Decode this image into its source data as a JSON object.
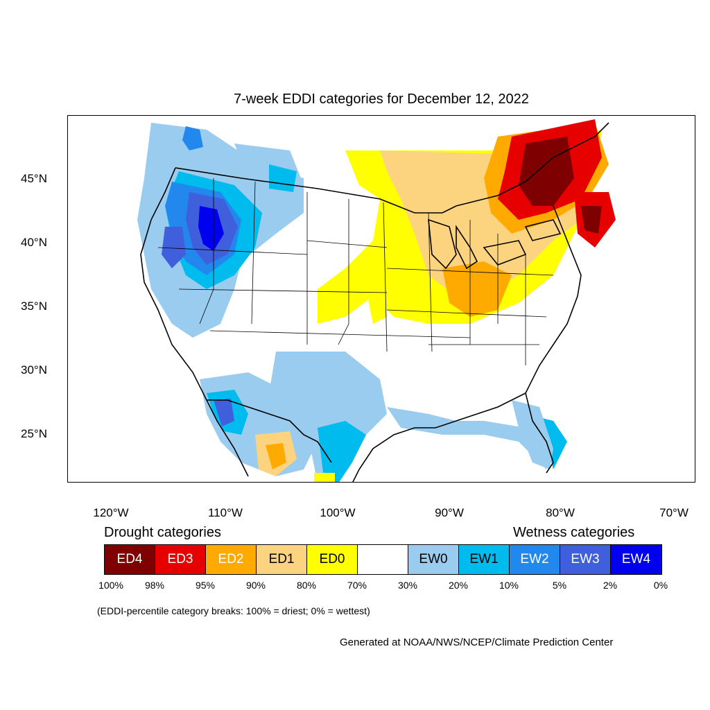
{
  "title": "7-week EDDI categories for December 12, 2022",
  "axes": {
    "lat_ticks": [
      "45°N",
      "40°N",
      "35°N",
      "30°N",
      "25°N"
    ],
    "lon_ticks": [
      "120°W",
      "110°W",
      "100°W",
      "90°W",
      "80°W",
      "70°W"
    ]
  },
  "legend": {
    "drought_heading": "Drought categories",
    "wetness_heading": "Wetness categories",
    "categories": [
      {
        "label": "ED4",
        "color": "#7f0000",
        "text_color": "#ffffff"
      },
      {
        "label": "ED3",
        "color": "#e60000",
        "text_color": "#ffffff"
      },
      {
        "label": "ED2",
        "color": "#ffaa00",
        "text_color": "#ffffff"
      },
      {
        "label": "ED1",
        "color": "#fcd37f",
        "text_color": "#000000"
      },
      {
        "label": "ED0",
        "color": "#ffff00",
        "text_color": "#000000"
      },
      {
        "label": "",
        "color": "#ffffff",
        "text_color": "#000000"
      },
      {
        "label": "EW0",
        "color": "#99ccee",
        "text_color": "#000000"
      },
      {
        "label": "EW1",
        "color": "#00bbee",
        "text_color": "#000000"
      },
      {
        "label": "EW2",
        "color": "#2288ee",
        "text_color": "#ffffff"
      },
      {
        "label": "EW3",
        "color": "#3f5fdd",
        "text_color": "#ffffff"
      },
      {
        "label": "EW4",
        "color": "#0000ee",
        "text_color": "#ffffff"
      }
    ],
    "breaks": [
      "100%",
      "98%",
      "95%",
      "90%",
      "80%",
      "70%",
      "30%",
      "20%",
      "10%",
      "5%",
      "2%",
      "0%"
    ]
  },
  "note": "(EDDI-percentile category breaks: 100% = driest; 0% = wettest)",
  "credit": "Generated at NOAA/NWS/NCEP/Climate Prediction Center"
}
